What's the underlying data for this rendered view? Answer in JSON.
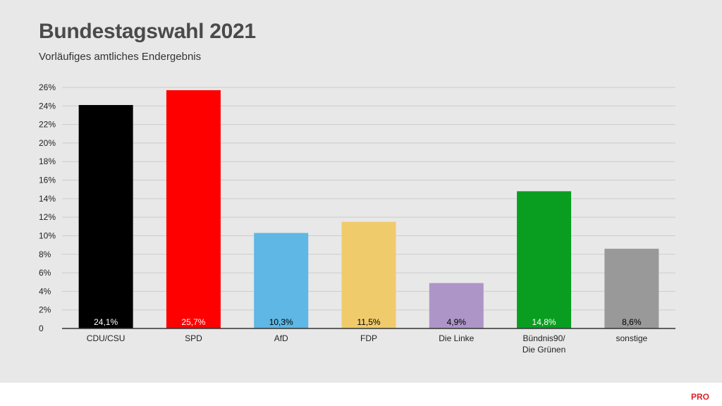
{
  "header": {
    "title": "Bundestagswahl 2021",
    "subtitle": "Vorläufiges amtliches Endergebnis"
  },
  "brand": {
    "logo_text": "PRO",
    "color": "#d8232a"
  },
  "chart_data": {
    "type": "bar",
    "title": "Bundestagswahl 2021",
    "subtitle": "Vorläufiges amtliches Endergebnis",
    "xlabel": "",
    "ylabel": "",
    "ylim": [
      0,
      26
    ],
    "grid": true,
    "legend": "none",
    "yticks": [
      {
        "value": 0,
        "label": "0"
      },
      {
        "value": 2,
        "label": "2%"
      },
      {
        "value": 4,
        "label": "4%"
      },
      {
        "value": 6,
        "label": "6%"
      },
      {
        "value": 8,
        "label": "8%"
      },
      {
        "value": 10,
        "label": "10%"
      },
      {
        "value": 12,
        "label": "12%"
      },
      {
        "value": 14,
        "label": "14%"
      },
      {
        "value": 16,
        "label": "16%"
      },
      {
        "value": 18,
        "label": "18%"
      },
      {
        "value": 20,
        "label": "20%"
      },
      {
        "value": 22,
        "label": "22%"
      },
      {
        "value": 24,
        "label": "24%"
      },
      {
        "value": 26,
        "label": "26%"
      }
    ],
    "bars": [
      {
        "category": "CDU/CSU",
        "value": 24.1,
        "label": "24,1%",
        "color": "#000000",
        "label_color": "#ffffff"
      },
      {
        "category": "SPD",
        "value": 25.7,
        "label": "25,7%",
        "color": "#ff0000",
        "label_color": "#ffffff"
      },
      {
        "category": "AfD",
        "value": 10.3,
        "label": "10,3%",
        "color": "#5eb7e4",
        "label_color": "#000000"
      },
      {
        "category": "FDP",
        "value": 11.5,
        "label": "11,5%",
        "color": "#f0cb6c",
        "label_color": "#000000"
      },
      {
        "category": "Die Linke",
        "value": 4.9,
        "label": "4,9%",
        "color": "#ad95c8",
        "label_color": "#000000"
      },
      {
        "category": "Bündnis90/Die Grünen",
        "value": 14.8,
        "label": "14,8%",
        "color": "#0a9e21",
        "label_color": "#ffffff"
      },
      {
        "category": "sonstige",
        "value": 8.6,
        "label": "8,6%",
        "color": "#999999",
        "label_color": "#000000"
      }
    ]
  }
}
